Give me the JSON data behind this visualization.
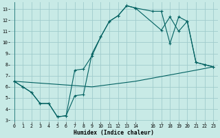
{
  "xlabel": "Humidex (Indice chaleur)",
  "background_color": "#c8eae6",
  "grid_color": "#a0cccc",
  "line_color": "#006060",
  "xlim": [
    -0.5,
    23.5
  ],
  "ylim": [
    2.8,
    13.6
  ],
  "xticks": [
    0,
    1,
    2,
    3,
    4,
    5,
    6,
    7,
    8,
    9,
    10,
    11,
    12,
    13,
    14,
    16,
    17,
    18,
    19,
    20,
    21,
    22,
    23
  ],
  "yticks": [
    3,
    4,
    5,
    6,
    7,
    8,
    9,
    10,
    11,
    12,
    13
  ],
  "line1_x": [
    0,
    1,
    2,
    3,
    4,
    5,
    6,
    7,
    8,
    9,
    10,
    11,
    12,
    13,
    14,
    16,
    17,
    18,
    19,
    20,
    21,
    22,
    23
  ],
  "line1_y": [
    6.5,
    6.0,
    5.5,
    4.5,
    4.5,
    3.3,
    3.4,
    5.2,
    5.3,
    9.0,
    10.5,
    11.9,
    12.4,
    13.3,
    13.1,
    12.8,
    12.8,
    9.9,
    12.3,
    11.9,
    8.2,
    8.0,
    7.8
  ],
  "line2_x": [
    0,
    1,
    2,
    3,
    4,
    5,
    6,
    7,
    8,
    9,
    10,
    11,
    12,
    13,
    14,
    17,
    18,
    19,
    20,
    21,
    22,
    23
  ],
  "line2_y": [
    6.5,
    6.0,
    5.5,
    4.5,
    4.5,
    3.3,
    3.4,
    7.5,
    7.6,
    8.8,
    10.5,
    11.9,
    12.4,
    13.3,
    13.1,
    11.1,
    12.3,
    11.0,
    11.9,
    8.2,
    8.0,
    7.8
  ],
  "line3_x": [
    0,
    9,
    14,
    21,
    23
  ],
  "line3_y": [
    6.5,
    6.0,
    6.5,
    7.5,
    7.8
  ]
}
